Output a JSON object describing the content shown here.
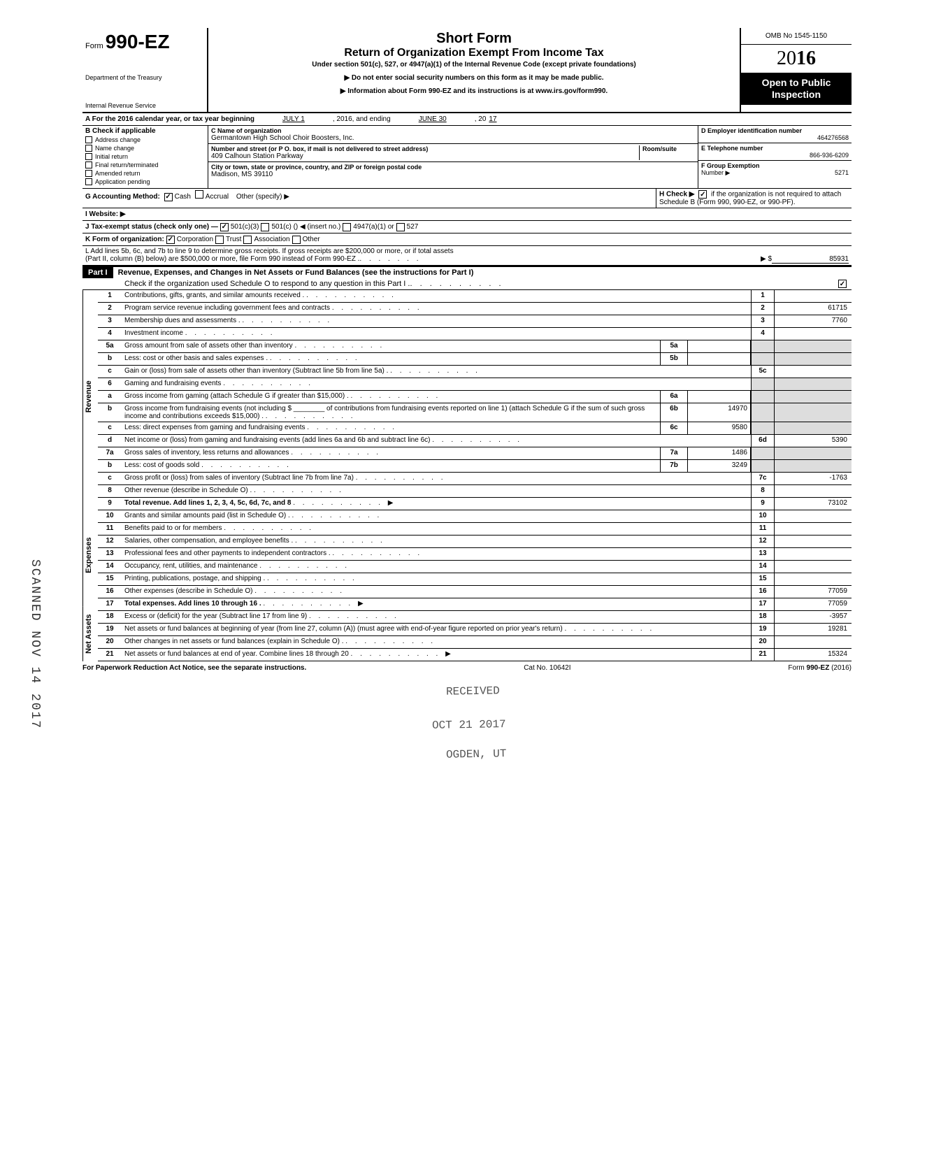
{
  "header": {
    "form_prefix": "Form",
    "form_number": "990-EZ",
    "dept1": "Department of the Treasury",
    "dept2": "Internal Revenue Service",
    "title_main": "Short Form",
    "title_sub": "Return of Organization Exempt From Income Tax",
    "title_note": "Under section 501(c), 527, or 4947(a)(1) of the Internal Revenue Code (except private foundations)",
    "warn": "▶ Do not enter social security numbers on this form as it may be made public.",
    "info": "▶ Information about Form 990-EZ and its instructions is at www.irs.gov/form990.",
    "omb": "OMB No 1545-1150",
    "year": "2016",
    "open1": "Open to Public",
    "open2": "Inspection"
  },
  "section_a": {
    "line": "A For the 2016 calendar year, or tax year beginning",
    "begin": "JULY 1",
    "mid": ", 2016, and ending",
    "end": "JUNE 30",
    "yr": ", 20",
    "yr_val": "17"
  },
  "col_b": {
    "header": "B Check if applicable",
    "items": [
      "Address change",
      "Name change",
      "Initial return",
      "Final return/terminated",
      "Amended return",
      "Application pending"
    ]
  },
  "col_c": {
    "name_label": "C Name of organization",
    "name": "Germantown High School Choir Boosters, Inc.",
    "street_label": "Number and street (or P O. box, if mail is not delivered to street address)",
    "room_label": "Room/suite",
    "street": "409 Calhoun Station Parkway",
    "city_label": "City or town, state or province, country, and ZIP or foreign postal code",
    "city": "Madison, MS 39110"
  },
  "col_d": {
    "ein_label": "D Employer identification number",
    "ein": "464276568",
    "tel_label": "E Telephone number",
    "tel": "866-936-6209",
    "grp_label": "F Group Exemption",
    "grp_label2": "Number ▶",
    "grp": "5271"
  },
  "lines_ghijk": {
    "g": "G Accounting Method:",
    "g_cash": "Cash",
    "g_accrual": "Accrual",
    "g_other": "Other (specify) ▶",
    "h": "H Check ▶",
    "h_text": "if the organization is not required to attach Schedule B (Form 990, 990-EZ, or 990-PF).",
    "i": "I Website: ▶",
    "j": "J Tax-exempt status (check only one) —",
    "j_501c3": "501(c)(3)",
    "j_501c": "501(c) (",
    "j_insert": ") ◀ (insert no.)",
    "j_4947": "4947(a)(1) or",
    "j_527": "527",
    "k": "K Form of organization:",
    "k_corp": "Corporation",
    "k_trust": "Trust",
    "k_assoc": "Association",
    "k_other": "Other",
    "l1": "L Add lines 5b, 6c, and 7b to line 9 to determine gross receipts. If gross receipts are $200,000 or more, or if total assets",
    "l2": "(Part II, column (B) below) are $500,000 or more, file Form 990 instead of Form 990-EZ .",
    "l_arrow": "▶ $",
    "l_val": "85931"
  },
  "part1": {
    "label": "Part I",
    "title": "Revenue, Expenses, and Changes in Net Assets or Fund Balances (see the instructions for Part I)",
    "check_line": "Check if the organization used Schedule O to respond to any question in this Part I ."
  },
  "side_labels": {
    "revenue": "Revenue",
    "expenses": "Expenses",
    "netassets": "Net Assets"
  },
  "rows": [
    {
      "n": "1",
      "desc": "Contributions, gifts, grants, and similar amounts received .",
      "rn": "1",
      "rv": ""
    },
    {
      "n": "2",
      "desc": "Program service revenue including government fees and contracts",
      "rn": "2",
      "rv": "61715"
    },
    {
      "n": "3",
      "desc": "Membership dues and assessments .",
      "rn": "3",
      "rv": "7760"
    },
    {
      "n": "4",
      "desc": "Investment income",
      "rn": "4",
      "rv": ""
    },
    {
      "n": "5a",
      "desc": "Gross amount from sale of assets other than inventory",
      "mb": "5a",
      "mv": "",
      "shaded": true
    },
    {
      "n": "b",
      "desc": "Less: cost or other basis and sales expenses .",
      "mb": "5b",
      "mv": "",
      "shaded": true
    },
    {
      "n": "c",
      "desc": "Gain or (loss) from sale of assets other than inventory (Subtract line 5b from line 5a) .",
      "rn": "5c",
      "rv": ""
    },
    {
      "n": "6",
      "desc": "Gaming and fundraising events",
      "shaded": true
    },
    {
      "n": "a",
      "desc": "Gross income from gaming (attach Schedule G if greater than $15,000) .",
      "mb": "6a",
      "mv": "",
      "shaded": true
    },
    {
      "n": "b",
      "desc": "Gross income from fundraising events (not including $ ________ of contributions from fundraising events reported on line 1) (attach Schedule G if the sum of such gross income and contributions exceeds $15,000) .",
      "mb": "6b",
      "mv": "14970",
      "shaded": true
    },
    {
      "n": "c",
      "desc": "Less: direct expenses from gaming and fundraising events",
      "mb": "6c",
      "mv": "9580",
      "shaded": true
    },
    {
      "n": "d",
      "desc": "Net income or (loss) from gaming and fundraising events (add lines 6a and 6b and subtract line 6c)",
      "rn": "6d",
      "rv": "5390"
    },
    {
      "n": "7a",
      "desc": "Gross sales of inventory, less returns and allowances",
      "mb": "7a",
      "mv": "1486",
      "shaded": true
    },
    {
      "n": "b",
      "desc": "Less: cost of goods sold",
      "mb": "7b",
      "mv": "3249",
      "shaded": true
    },
    {
      "n": "c",
      "desc": "Gross profit or (loss) from sales of inventory (Subtract line 7b from line 7a)",
      "rn": "7c",
      "rv": "-1763"
    },
    {
      "n": "8",
      "desc": "Other revenue (describe in Schedule O) .",
      "rn": "8",
      "rv": ""
    },
    {
      "n": "9",
      "desc": "Total revenue. Add lines 1, 2, 3, 4, 5c, 6d, 7c, and 8",
      "rn": "9",
      "rv": "73102",
      "bold": true,
      "arrow": true
    },
    {
      "n": "10",
      "desc": "Grants and similar amounts paid (list in Schedule O) .",
      "rn": "10",
      "rv": ""
    },
    {
      "n": "11",
      "desc": "Benefits paid to or for members",
      "rn": "11",
      "rv": ""
    },
    {
      "n": "12",
      "desc": "Salaries, other compensation, and employee benefits .",
      "rn": "12",
      "rv": ""
    },
    {
      "n": "13",
      "desc": "Professional fees and other payments to independent contractors .",
      "rn": "13",
      "rv": ""
    },
    {
      "n": "14",
      "desc": "Occupancy, rent, utilities, and maintenance",
      "rn": "14",
      "rv": ""
    },
    {
      "n": "15",
      "desc": "Printing, publications, postage, and shipping .",
      "rn": "15",
      "rv": ""
    },
    {
      "n": "16",
      "desc": "Other expenses (describe in Schedule O)",
      "rn": "16",
      "rv": "77059"
    },
    {
      "n": "17",
      "desc": "Total expenses. Add lines 10 through 16 .",
      "rn": "17",
      "rv": "77059",
      "bold": true,
      "arrow": true
    },
    {
      "n": "18",
      "desc": "Excess or (deficit) for the year (Subtract line 17 from line 9)",
      "rn": "18",
      "rv": "-3957"
    },
    {
      "n": "19",
      "desc": "Net assets or fund balances at beginning of year (from line 27, column (A)) (must agree with end-of-year figure reported on prior year's return)",
      "rn": "19",
      "rv": "19281"
    },
    {
      "n": "20",
      "desc": "Other changes in net assets or fund balances (explain in Schedule O) .",
      "rn": "20",
      "rv": ""
    },
    {
      "n": "21",
      "desc": "Net assets or fund balances at end of year. Combine lines 18 through 20",
      "rn": "21",
      "rv": "15324",
      "arrow": true
    }
  ],
  "footer": {
    "left": "For Paperwork Reduction Act Notice, see the separate instructions.",
    "mid": "Cat No. 10642I",
    "right": "Form 990-EZ (2016)"
  },
  "stamps": {
    "received": "RECEIVED",
    "date": "OCT 21 2017",
    "ogden": "OGDEN, UT",
    "scanned": "SCANNED NOV 14 2017"
  }
}
